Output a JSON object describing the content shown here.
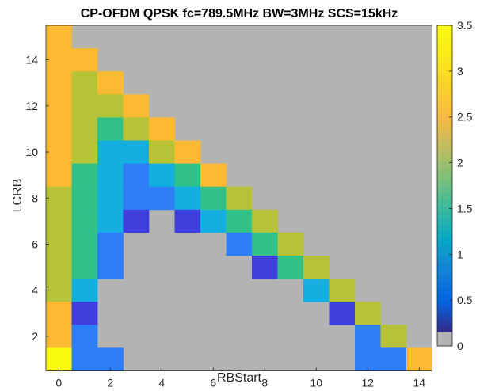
{
  "chart_data": {
    "type": "heatmap",
    "title": "CP-OFDM QPSK fc=789.5MHz BW=3MHz SCS=15kHz",
    "xlabel": "RBStart",
    "ylabel": "LCRB",
    "x_range": [
      0,
      14
    ],
    "y_range": [
      1,
      15
    ],
    "x_ticks": [
      0,
      2,
      4,
      6,
      8,
      10,
      12,
      14
    ],
    "y_ticks": [
      2,
      4,
      6,
      8,
      10,
      12,
      14
    ],
    "grid": false,
    "colorbar": {
      "colormap": "parula",
      "range": [
        0,
        3.5
      ],
      "ticks": [
        0,
        0.5,
        1,
        1.5,
        2,
        2.5,
        3,
        3.5
      ],
      "placement": "right",
      "invalid_color": "#b3b3b3"
    },
    "cells": [
      {
        "lcrb": 15,
        "values": [
          3
        ]
      },
      {
        "lcrb": 14,
        "values": [
          3,
          3
        ]
      },
      {
        "lcrb": 13,
        "values": [
          3,
          2.5,
          3
        ]
      },
      {
        "lcrb": 12,
        "values": [
          3,
          2.5,
          2.5,
          3
        ]
      },
      {
        "lcrb": 11,
        "values": [
          3,
          2.5,
          2,
          2.5,
          3
        ]
      },
      {
        "lcrb": 10,
        "values": [
          3,
          2.5,
          1.5,
          1.5,
          2.5,
          3
        ]
      },
      {
        "lcrb": 9,
        "values": [
          3,
          2,
          1.5,
          1,
          1.5,
          2,
          3
        ]
      },
      {
        "lcrb": 8,
        "values": [
          2.5,
          2,
          1.5,
          1,
          1,
          1.5,
          2,
          2.5
        ]
      },
      {
        "lcrb": 7,
        "values": [
          2.5,
          2,
          1.5,
          0.5,
          null,
          0.5,
          1.5,
          2,
          2.5
        ]
      },
      {
        "lcrb": 6,
        "values": [
          2.5,
          2,
          1,
          null,
          null,
          null,
          null,
          1,
          2,
          2.5
        ]
      },
      {
        "lcrb": 5,
        "values": [
          2.5,
          2,
          1,
          null,
          null,
          null,
          null,
          null,
          0.5,
          2,
          2.5
        ]
      },
      {
        "lcrb": 4,
        "values": [
          2.5,
          1.5,
          null,
          null,
          null,
          null,
          null,
          null,
          null,
          null,
          1.5,
          2.5
        ]
      },
      {
        "lcrb": 3,
        "values": [
          3,
          0.5,
          null,
          null,
          null,
          null,
          null,
          null,
          null,
          null,
          null,
          0.5,
          2.5
        ]
      },
      {
        "lcrb": 2,
        "values": [
          3,
          1,
          null,
          null,
          null,
          null,
          null,
          null,
          null,
          null,
          null,
          null,
          1,
          2.5
        ]
      },
      {
        "lcrb": 1,
        "values": [
          3.5,
          1,
          1,
          null,
          null,
          null,
          null,
          null,
          null,
          null,
          null,
          null,
          1,
          1,
          3
        ]
      }
    ]
  }
}
